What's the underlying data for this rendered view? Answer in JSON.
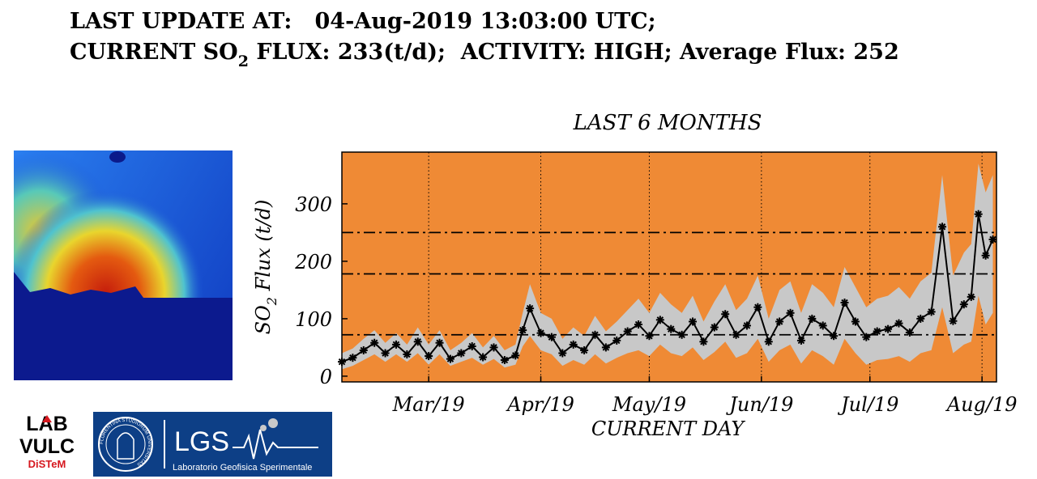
{
  "header": {
    "line1": "LAST UPDATE AT:   04-Aug-2019 13:03:00 UTC;",
    "line2_prefix": "CURRENT SO",
    "line2_sub": "2",
    "line2_suffix": " FLUX: 233(t/d);  ACTIVITY: HIGH; Average Flux: 252"
  },
  "logos": {
    "labvulc_line1": "LAB",
    "labvulc_line2": "VULC",
    "labvulc_line3": "DiSTeM",
    "lgs_name": "LGS",
    "lgs_caption": "Laboratorio Geofisica Sperimentale",
    "lgs_seal_text": "FLORENTINA STUDIORUM UNIVERSITAS"
  },
  "colors": {
    "plot_background": "#ef8a35",
    "band": "#c8c8c8",
    "series": "#000000",
    "lgs_blue": "#0d3f86"
  },
  "chart_data": {
    "type": "line",
    "title": "LAST 6 MONTHS",
    "xlabel": "CURRENT DAY",
    "ylabel_prefix": "SO",
    "ylabel_sub": "2",
    "ylabel_suffix": " Flux (t/d)",
    "x_start": "2019-02-05",
    "x_end": "2019-08-05",
    "ylim": [
      -10,
      390
    ],
    "yticks": [
      0,
      100,
      200,
      300
    ],
    "xticks": [
      {
        "date": "2019-03-01",
        "label": "Mar/19"
      },
      {
        "date": "2019-04-01",
        "label": "Apr/19"
      },
      {
        "date": "2019-05-01",
        "label": "May/19"
      },
      {
        "date": "2019-06-01",
        "label": "Jun/19"
      },
      {
        "date": "2019-07-01",
        "label": "Jul/19"
      },
      {
        "date": "2019-08-01",
        "label": "Aug/19"
      }
    ],
    "grid": "vertical dotted at month ticks",
    "reference_lines": [
      72,
      178,
      250
    ],
    "series": [
      {
        "x": [
          "2019-02-05",
          "2019-02-08",
          "2019-02-11",
          "2019-02-14",
          "2019-02-17",
          "2019-02-20",
          "2019-02-23",
          "2019-02-26",
          "2019-03-01",
          "2019-03-04",
          "2019-03-07",
          "2019-03-10",
          "2019-03-13",
          "2019-03-16",
          "2019-03-19",
          "2019-03-22",
          "2019-03-25",
          "2019-03-27",
          "2019-03-29",
          "2019-04-01",
          "2019-04-04",
          "2019-04-07",
          "2019-04-10",
          "2019-04-13",
          "2019-04-16",
          "2019-04-19",
          "2019-04-22",
          "2019-04-25",
          "2019-04-28",
          "2019-05-01",
          "2019-05-04",
          "2019-05-07",
          "2019-05-10",
          "2019-05-13",
          "2019-05-16",
          "2019-05-19",
          "2019-05-22",
          "2019-05-25",
          "2019-05-28",
          "2019-05-31",
          "2019-06-03",
          "2019-06-06",
          "2019-06-09",
          "2019-06-12",
          "2019-06-15",
          "2019-06-18",
          "2019-06-21",
          "2019-06-24",
          "2019-06-27",
          "2019-06-30",
          "2019-07-03",
          "2019-07-06",
          "2019-07-09",
          "2019-07-12",
          "2019-07-15",
          "2019-07-18",
          "2019-07-21",
          "2019-07-24",
          "2019-07-27",
          "2019-07-29",
          "2019-07-31",
          "2019-08-02",
          "2019-08-04"
        ],
        "y": [
          25,
          32,
          45,
          58,
          40,
          55,
          38,
          60,
          35,
          58,
          30,
          40,
          52,
          33,
          50,
          28,
          36,
          80,
          118,
          75,
          68,
          40,
          55,
          45,
          72,
          50,
          62,
          78,
          90,
          70,
          98,
          82,
          72,
          95,
          60,
          85,
          108,
          72,
          88,
          120,
          60,
          95,
          110,
          62,
          100,
          88,
          70,
          128,
          95,
          68,
          78,
          82,
          92,
          76,
          100,
          112,
          260,
          96,
          125,
          138,
          282,
          210,
          238
        ],
        "band_low": [
          12,
          18,
          28,
          38,
          25,
          38,
          25,
          40,
          20,
          38,
          18,
          25,
          32,
          20,
          30,
          15,
          20,
          52,
          70,
          45,
          38,
          18,
          28,
          20,
          38,
          22,
          32,
          40,
          45,
          35,
          55,
          40,
          35,
          50,
          28,
          42,
          60,
          32,
          40,
          65,
          25,
          45,
          55,
          22,
          45,
          35,
          20,
          65,
          40,
          20,
          28,
          30,
          35,
          25,
          40,
          45,
          120,
          40,
          55,
          60,
          140,
          90,
          110
        ],
        "band_high": [
          40,
          48,
          65,
          80,
          58,
          75,
          55,
          85,
          55,
          80,
          45,
          58,
          75,
          50,
          70,
          45,
          55,
          110,
          160,
          110,
          100,
          65,
          85,
          70,
          105,
          78,
          95,
          115,
          135,
          110,
          145,
          125,
          110,
          140,
          95,
          130,
          160,
          115,
          135,
          175,
          100,
          150,
          165,
          110,
          160,
          145,
          120,
          190,
          155,
          120,
          135,
          140,
          155,
          135,
          165,
          180,
          350,
          175,
          215,
          230,
          370,
          320,
          350
        ]
      }
    ]
  }
}
